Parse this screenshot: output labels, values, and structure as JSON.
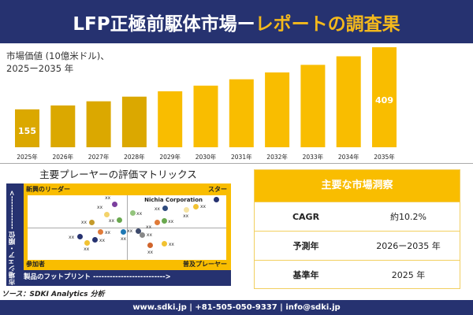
{
  "header": {
    "title_white": "LFP正極前駆体市場",
    "title_yellow": "レポートの調査果",
    "dash": "ー"
  },
  "chart_data": {
    "type": "bar",
    "ylabel": "市場価値 (10億米ドル)、",
    "ylabel2": "2025ー2035 年",
    "categories": [
      "2025年",
      "2026年",
      "2027年",
      "2028年",
      "2029年",
      "2030年",
      "2031年",
      "2032年",
      "2033年",
      "2034年",
      "2035年"
    ],
    "values": [
      155,
      171,
      188,
      207,
      229,
      252,
      278,
      306,
      337,
      372,
      409
    ],
    "data_labels": {
      "0": "155",
      "10": "409"
    },
    "bar_color": "#f9bd00",
    "bar_color_dark": "#dba800"
  },
  "matrix": {
    "title": "主要プレーヤーの評価マトリックス",
    "q_tl": "新興のリーダー",
    "q_tr": "スター",
    "q_bl": "参加者",
    "q_br": "普及プレーヤー",
    "y_axis": "市場シェア・順位 ------------>",
    "x_axis": "製品のフットプリント -------------------------->",
    "highlight": "Nichia Corporation",
    "points": [
      {
        "label": "xx",
        "x": 43.7,
        "y": 85.4,
        "color": "#7b3f9e",
        "side": "tl"
      },
      {
        "label": "xx",
        "x": 39.7,
        "y": 70.7,
        "color": "#f3d36b",
        "side": "tl"
      },
      {
        "label": "xx",
        "x": 32.5,
        "y": 58.5,
        "color": "#c49a2a",
        "side": "l"
      },
      {
        "label": "xx",
        "x": 46.4,
        "y": 61,
        "color": "#6aa84f",
        "side": "l"
      },
      {
        "label": "xx",
        "x": 52.8,
        "y": 72,
        "color": "#93c47d",
        "side": "r"
      },
      {
        "label": "xx",
        "x": 69.4,
        "y": 79.3,
        "color": "#2e4a7d",
        "side": "l"
      },
      {
        "label": "xx",
        "x": 79.8,
        "y": 78,
        "color": "#f6e3a1",
        "side": "b"
      },
      {
        "label": "xx",
        "x": 84.9,
        "y": 82.9,
        "color": "#f1c232",
        "side": "r"
      },
      {
        "label": "",
        "x": 95.2,
        "y": 93.9,
        "color": "#263270",
        "side": "none"
      },
      {
        "label": "xx",
        "x": 65.1,
        "y": 58.5,
        "color": "#e07b39",
        "side": "bl"
      },
      {
        "label": "xx",
        "x": 68.7,
        "y": 59.8,
        "color": "#6aa84f",
        "side": "r"
      },
      {
        "label": "xx",
        "x": 36.9,
        "y": 42.7,
        "color": "#e07b39",
        "side": "r"
      },
      {
        "label": "xx",
        "x": 48.4,
        "y": 42.7,
        "color": "#1f78b4",
        "side": "b"
      },
      {
        "label": "xx",
        "x": 26.2,
        "y": 35.4,
        "color": "#263270",
        "side": "l"
      },
      {
        "label": "xx",
        "x": 34.1,
        "y": 30.5,
        "color": "#263270",
        "side": "r"
      },
      {
        "label": "xx",
        "x": 29.8,
        "y": 26.8,
        "color": "#f1c232",
        "side": "b"
      },
      {
        "label": "xx",
        "x": 55.6,
        "y": 45.1,
        "color": "#3d4a6b",
        "side": "l"
      },
      {
        "label": "xx",
        "x": 57.9,
        "y": 39,
        "color": "#888888",
        "side": "r"
      },
      {
        "label": "xx",
        "x": 61.9,
        "y": 22,
        "color": "#d0652c",
        "side": "b"
      },
      {
        "label": "xx",
        "x": 69.0,
        "y": 24.4,
        "color": "#f1c232",
        "side": "r"
      }
    ]
  },
  "source": "ソース：SDKI Analytics 分析",
  "insights": {
    "title": "主要な市場洞察",
    "rows": [
      {
        "k": "CAGR",
        "v": "約10.2%"
      },
      {
        "k": "予測年",
        "v": "2026ー2035 年"
      },
      {
        "k": "基準年",
        "v": "2025 年"
      }
    ]
  },
  "footer": "www.sdki.jp | +81-505-050-9337 | info@sdki.jp"
}
